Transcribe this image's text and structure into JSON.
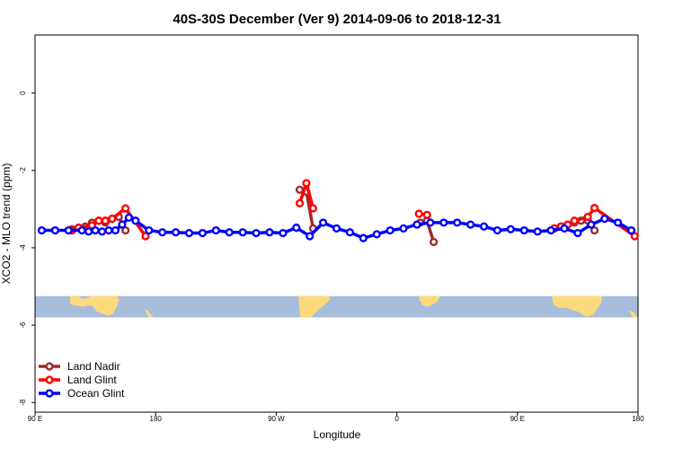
{
  "chart_data": {
    "type": "line",
    "title": "40S-30S December (Ver 9)   2014-09-06 to 2018-12-31",
    "xlabel": "Longitude",
    "ylabel": "XCO2 - MLO trend (ppm)",
    "xlim": [
      90,
      450
    ],
    "ylim": [
      -8.25,
      1.5
    ],
    "x_ticks": [
      {
        "value": 90,
        "label": "90 E"
      },
      {
        "value": 180,
        "label": "180"
      },
      {
        "value": 270,
        "label": "90 W"
      },
      {
        "value": 360,
        "label": "0"
      },
      {
        "value": 450,
        "label": "90 E"
      },
      {
        "value": 540,
        "label": "180"
      }
    ],
    "y_ticks": [
      {
        "value": 0,
        "label": "0"
      },
      {
        "value": -2,
        "label": "-2"
      },
      {
        "value": -4,
        "label": "-4"
      },
      {
        "value": -6,
        "label": "-6"
      },
      {
        "value": -8,
        "label": "-8"
      }
    ],
    "legend_position": "bottom-left",
    "map_strip": {
      "y_top": -5.25,
      "y_bottom": -5.8,
      "ocean_color": "#a6bddb",
      "land_color": "#fcd97c"
    },
    "series": [
      {
        "name": "Land Nadir",
        "color": "#9e2a2b",
        "segments": [
          {
            "x": [
              117.5,
              122.5,
              127.5,
              132.5,
              137.5,
              142.5,
              147.5,
              152.5,
              157.5
            ],
            "y": [
              -3.52,
              -3.48,
              -3.45,
              -3.35,
              -3.3,
              -3.35,
              -3.25,
              -3.2,
              -3.55
            ]
          },
          {
            "x": [
              287.5,
              292.5,
              297.5
            ],
            "y": [
              -2.5,
              -2.55,
              -3.5
            ]
          },
          {
            "x": [
              377.5,
              382.5,
              387.5
            ],
            "y": [
              -3.35,
              -3.3,
              -3.85
            ]
          },
          {
            "x": [
              477.5,
              482.5,
              487.5,
              492.5,
              497.5,
              502.5,
              507.5
            ],
            "y": [
              -3.5,
              -3.45,
              -3.4,
              -3.35,
              -3.3,
              -3.3,
              -3.55
            ]
          }
        ]
      },
      {
        "name": "Land Glint",
        "color": "#ff0000",
        "segments": [
          {
            "x": [
              117.5,
              122.5,
              132.5,
              137.5,
              142.5,
              147.5,
              157.5,
              172.5
            ],
            "y": [
              -3.55,
              -3.48,
              -3.42,
              -3.3,
              -3.3,
              -3.25,
              -2.98,
              -3.7
            ]
          },
          {
            "x": [
              287.5,
              292.5,
              297.5
            ],
            "y": [
              -2.85,
              -2.33,
              -2.98
            ]
          },
          {
            "x": [
              376.5,
              382.5
            ],
            "y": [
              -3.12,
              -3.15
            ]
          },
          {
            "x": [
              477.5,
              482.5,
              487.5,
              492.5,
              502.5,
              507.5,
              537.5
            ],
            "y": [
              -3.5,
              -3.45,
              -3.4,
              -3.3,
              -3.2,
              -2.97,
              -3.7
            ]
          }
        ]
      },
      {
        "name": "Ocean Glint",
        "color": "#0000ff",
        "segments": [
          {
            "x": [
              95,
              105,
              115,
              125,
              130,
              135,
              140,
              145,
              150,
              155,
              160,
              165,
              175,
              185,
              195,
              205,
              215,
              225,
              235,
              245,
              255,
              265,
              275,
              285,
              295,
              305,
              315,
              325,
              335,
              345,
              355,
              365,
              375,
              385,
              395,
              405,
              415,
              425,
              435,
              445,
              455,
              465,
              475,
              485,
              495,
              505,
              515,
              525,
              535
            ],
            "y": [
              -3.55,
              -3.55,
              -3.55,
              -3.55,
              -3.58,
              -3.55,
              -3.58,
              -3.55,
              -3.55,
              -3.4,
              -3.22,
              -3.3,
              -3.55,
              -3.6,
              -3.6,
              -3.62,
              -3.62,
              -3.55,
              -3.6,
              -3.6,
              -3.62,
              -3.6,
              -3.62,
              -3.48,
              -3.7,
              -3.35,
              -3.5,
              -3.6,
              -3.75,
              -3.65,
              -3.55,
              -3.5,
              -3.4,
              -3.35,
              -3.35,
              -3.35,
              -3.4,
              -3.45,
              -3.55,
              -3.52,
              -3.55,
              -3.58,
              -3.55,
              -3.5,
              -3.62,
              -3.4,
              -3.25,
              -3.35,
              -3.55
            ]
          }
        ]
      }
    ]
  }
}
